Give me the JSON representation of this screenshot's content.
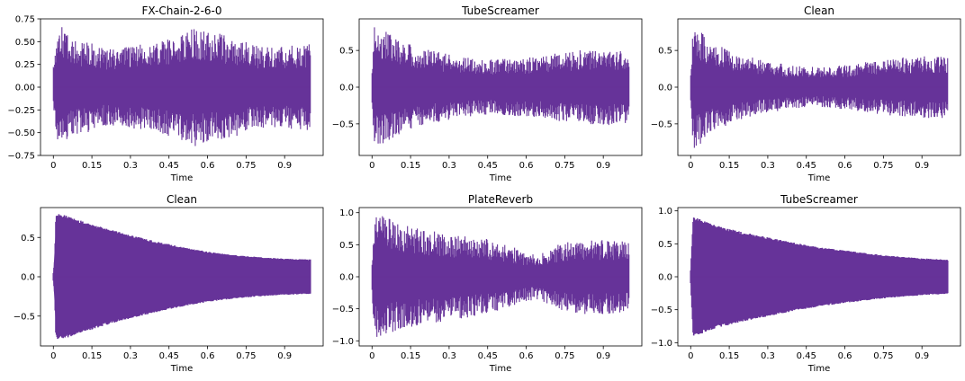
{
  "figure": {
    "wave_color": "#663399"
  },
  "chart_data": [
    {
      "type": "line",
      "title": "FX-Chain-2-6-0",
      "xlabel": "Time",
      "ylabel": "",
      "xlim": [
        -0.05,
        1.05
      ],
      "ylim": [
        -0.75,
        0.75
      ],
      "xticks": [
        0,
        0.15,
        0.3,
        0.45,
        0.6,
        0.75,
        0.9
      ],
      "xtick_labels": [
        "0",
        "0.15",
        "0.3",
        "0.45",
        "0.6",
        "0.75",
        "0.9"
      ],
      "yticks": [
        0.75,
        0.5,
        0.25,
        0.0,
        -0.25,
        -0.5,
        -0.75
      ],
      "ytick_labels": [
        "0.75",
        "0.50",
        "0.25",
        "0.00",
        "−0.25",
        "−0.50",
        "−0.75"
      ],
      "envelope": {
        "t": [
          0,
          0.01,
          0.03,
          0.05,
          0.1,
          0.15,
          0.2,
          0.3,
          0.4,
          0.5,
          0.55,
          0.6,
          0.7,
          0.8,
          0.9,
          1.0
        ],
        "amp": [
          0.3,
          0.55,
          0.68,
          0.6,
          0.5,
          0.5,
          0.42,
          0.45,
          0.5,
          0.58,
          0.65,
          0.62,
          0.55,
          0.45,
          0.45,
          0.48
        ]
      },
      "style": "spiky"
    },
    {
      "type": "line",
      "title": "TubeScreamer",
      "xlabel": "Time",
      "ylabel": "",
      "xlim": [
        -0.05,
        1.05
      ],
      "ylim": [
        -0.93,
        0.93
      ],
      "xticks": [
        0,
        0.15,
        0.3,
        0.45,
        0.6,
        0.75,
        0.9
      ],
      "xtick_labels": [
        "0",
        "0.15",
        "0.3",
        "0.45",
        "0.6",
        "0.75",
        "0.9"
      ],
      "yticks": [
        0.5,
        0.0,
        -0.5
      ],
      "ytick_labels": [
        "0.5",
        "0.0",
        "−0.5"
      ],
      "envelope": {
        "t": [
          0,
          0.01,
          0.03,
          0.1,
          0.2,
          0.3,
          0.4,
          0.5,
          0.6,
          0.7,
          0.8,
          0.9,
          1.0
        ],
        "amp": [
          0.3,
          0.85,
          0.82,
          0.65,
          0.52,
          0.45,
          0.4,
          0.38,
          0.4,
          0.45,
          0.5,
          0.52,
          0.5
        ]
      },
      "style": "spiky"
    },
    {
      "type": "line",
      "title": "Clean",
      "xlabel": "Time",
      "ylabel": "",
      "xlim": [
        -0.05,
        1.05
      ],
      "ylim": [
        -0.93,
        0.93
      ],
      "xticks": [
        0,
        0.15,
        0.3,
        0.45,
        0.6,
        0.75,
        0.9
      ],
      "xtick_labels": [
        "0",
        "0.15",
        "0.3",
        "0.45",
        "0.6",
        "0.75",
        "0.9"
      ],
      "yticks": [
        0.5,
        0.0,
        -0.5
      ],
      "ytick_labels": [
        "0.5",
        "0.0",
        "−0.5"
      ],
      "envelope": {
        "t": [
          0,
          0.01,
          0.03,
          0.1,
          0.2,
          0.3,
          0.4,
          0.5,
          0.6,
          0.7,
          0.8,
          0.9,
          1.0
        ],
        "amp": [
          0.3,
          0.85,
          0.8,
          0.6,
          0.45,
          0.35,
          0.3,
          0.27,
          0.3,
          0.35,
          0.4,
          0.42,
          0.42
        ]
      },
      "style": "spiky"
    },
    {
      "type": "line",
      "title": "Clean",
      "xlabel": "Time",
      "ylabel": "",
      "xlim": [
        -0.05,
        1.05
      ],
      "ylim": [
        -0.88,
        0.88
      ],
      "xticks": [
        0,
        0.15,
        0.3,
        0.45,
        0.6,
        0.75,
        0.9
      ],
      "xtick_labels": [
        "0",
        "0.15",
        "0.3",
        "0.45",
        "0.6",
        "0.75",
        "0.9"
      ],
      "yticks": [
        0.5,
        0.0,
        -0.5
      ],
      "ytick_labels": [
        "0.5",
        "0.0",
        "−0.5"
      ],
      "envelope": {
        "t": [
          0,
          0.005,
          0.01,
          0.02,
          0.05,
          0.1,
          0.2,
          0.3,
          0.4,
          0.5,
          0.6,
          0.7,
          0.8,
          0.9,
          1.0
        ],
        "amp": [
          0.05,
          0.2,
          0.78,
          0.8,
          0.78,
          0.72,
          0.62,
          0.53,
          0.45,
          0.38,
          0.32,
          0.28,
          0.25,
          0.23,
          0.22
        ]
      },
      "style": "dense"
    },
    {
      "type": "line",
      "title": "PlateReverb",
      "xlabel": "Time",
      "ylabel": "",
      "xlim": [
        -0.05,
        1.05
      ],
      "ylim": [
        -1.08,
        1.08
      ],
      "xticks": [
        0,
        0.15,
        0.3,
        0.45,
        0.6,
        0.75,
        0.9
      ],
      "xtick_labels": [
        "0",
        "0.15",
        "0.3",
        "0.45",
        "0.6",
        "0.75",
        "0.9"
      ],
      "yticks": [
        1.0,
        0.5,
        0.0,
        -0.5,
        -1.0
      ],
      "ytick_labels": [
        "1.0",
        "0.5",
        "0.0",
        "−0.5",
        "−1.0"
      ],
      "envelope": {
        "t": [
          0,
          0.01,
          0.05,
          0.1,
          0.2,
          0.3,
          0.4,
          0.5,
          0.6,
          0.65,
          0.7,
          0.8,
          0.9,
          1.0
        ],
        "amp": [
          0.3,
          0.98,
          0.95,
          0.85,
          0.75,
          0.68,
          0.62,
          0.55,
          0.38,
          0.35,
          0.48,
          0.58,
          0.58,
          0.55
        ]
      },
      "style": "spiky"
    },
    {
      "type": "line",
      "title": "TubeScreamer",
      "xlabel": "Time",
      "ylabel": "",
      "xlim": [
        -0.05,
        1.05
      ],
      "ylim": [
        -1.05,
        1.05
      ],
      "xticks": [
        0,
        0.15,
        0.3,
        0.45,
        0.6,
        0.75,
        0.9
      ],
      "xtick_labels": [
        "0",
        "0.15",
        "0.3",
        "0.45",
        "0.6",
        "0.75",
        "0.9"
      ],
      "yticks": [
        1.0,
        0.5,
        0.0,
        -0.5,
        -1.0
      ],
      "ytick_labels": [
        "1.0",
        "0.5",
        "0.0",
        "−0.5",
        "−1.0"
      ],
      "envelope": {
        "t": [
          0,
          0.005,
          0.01,
          0.02,
          0.05,
          0.1,
          0.2,
          0.3,
          0.4,
          0.5,
          0.6,
          0.7,
          0.8,
          0.9,
          1.0
        ],
        "amp": [
          0.1,
          0.5,
          0.92,
          0.9,
          0.85,
          0.78,
          0.68,
          0.6,
          0.52,
          0.45,
          0.4,
          0.35,
          0.31,
          0.28,
          0.26
        ]
      },
      "style": "dense"
    }
  ]
}
